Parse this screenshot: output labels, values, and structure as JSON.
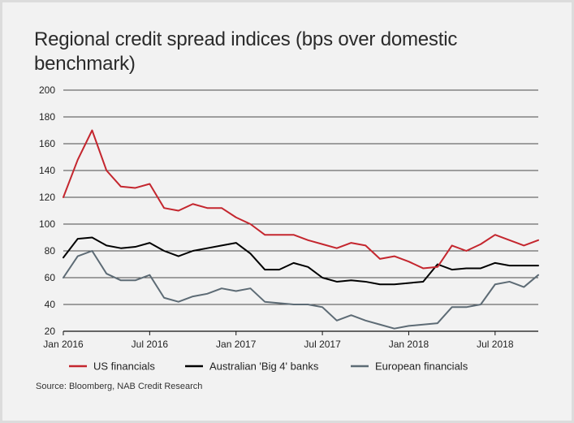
{
  "colors": {
    "us": "#c4262e",
    "au": "#000000",
    "eu": "#5d6b75",
    "grid": "#111111",
    "background": "#f2f2f2"
  },
  "chart_data": {
    "type": "line",
    "title": "Regional credit spread indices (bps over domestic benchmark)",
    "xlabel": "",
    "ylabel": "",
    "ylim": [
      20,
      200
    ],
    "yticks": [
      20,
      40,
      60,
      80,
      100,
      120,
      140,
      160,
      180,
      200
    ],
    "xlim": [
      "2016-01",
      "2018-10"
    ],
    "xticks": [
      {
        "label": "Jan 2016",
        "x": "2016-01"
      },
      {
        "label": "Jul 2016",
        "x": "2016-07"
      },
      {
        "label": "Jan 2017",
        "x": "2017-01"
      },
      {
        "label": "Jul 2017",
        "x": "2017-07"
      },
      {
        "label": "Jan 2018",
        "x": "2018-01"
      },
      {
        "label": "Jul 2018",
        "x": "2018-07"
      }
    ],
    "grid": true,
    "legend_position": "bottom",
    "x": [
      "2016-01",
      "2016-02",
      "2016-03",
      "2016-04",
      "2016-05",
      "2016-06",
      "2016-07",
      "2016-08",
      "2016-09",
      "2016-10",
      "2016-11",
      "2016-12",
      "2017-01",
      "2017-02",
      "2017-03",
      "2017-04",
      "2017-05",
      "2017-06",
      "2017-07",
      "2017-08",
      "2017-09",
      "2017-10",
      "2017-11",
      "2017-12",
      "2018-01",
      "2018-02",
      "2018-03",
      "2018-04",
      "2018-05",
      "2018-06",
      "2018-07",
      "2018-08",
      "2018-09",
      "2018-10"
    ],
    "series": [
      {
        "name": "US financials",
        "values": [
          120,
          148,
          170,
          140,
          128,
          127,
          130,
          112,
          110,
          115,
          112,
          112,
          105,
          100,
          92,
          92,
          92,
          88,
          85,
          82,
          86,
          84,
          74,
          76,
          72,
          67,
          68,
          84,
          80,
          85,
          92,
          88,
          84,
          88
        ]
      },
      {
        "name": "Australian 'Big 4' banks",
        "values": [
          75,
          89,
          90,
          84,
          82,
          83,
          86,
          80,
          76,
          80,
          82,
          84,
          86,
          78,
          66,
          66,
          71,
          68,
          60,
          57,
          58,
          57,
          55,
          55,
          56,
          57,
          70,
          66,
          67,
          67,
          71,
          69,
          69,
          69
        ]
      },
      {
        "name": "European financials",
        "values": [
          60,
          76,
          80,
          63,
          58,
          58,
          62,
          45,
          42,
          46,
          48,
          52,
          50,
          52,
          42,
          41,
          40,
          40,
          38,
          28,
          32,
          28,
          25,
          22,
          24,
          25,
          26,
          38,
          38,
          40,
          55,
          57,
          53,
          62
        ]
      }
    ]
  },
  "source": "Source: Bloomberg, NAB Credit Research"
}
